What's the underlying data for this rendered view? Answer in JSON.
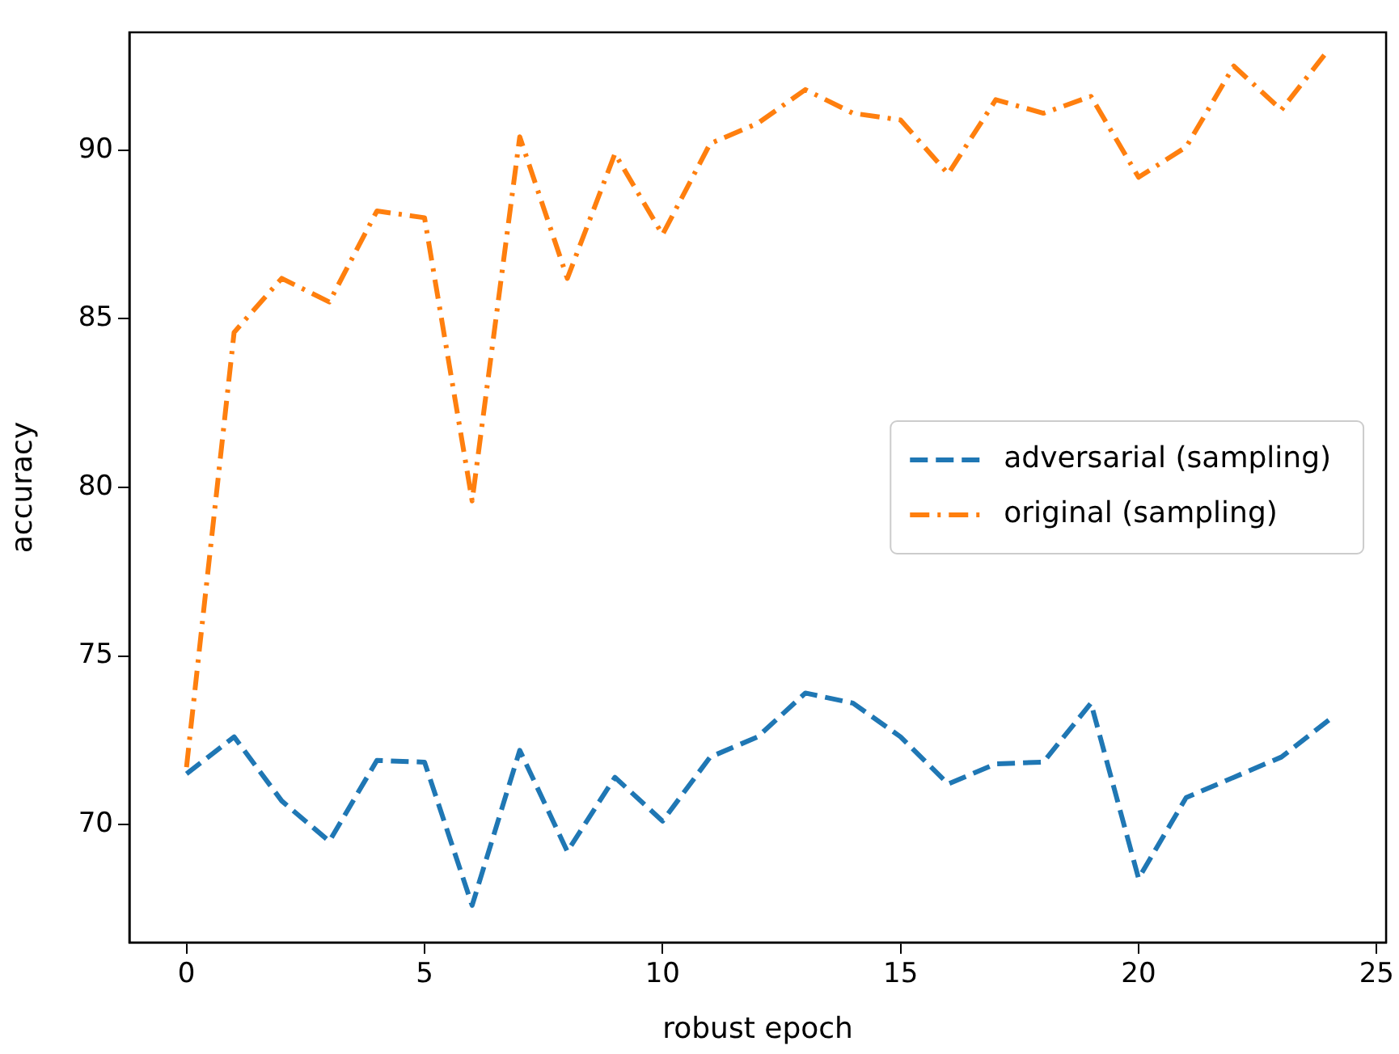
{
  "chart_data": {
    "type": "line",
    "xlabel": "robust epoch",
    "ylabel": "accuracy",
    "x": [
      0,
      1,
      2,
      3,
      4,
      5,
      6,
      7,
      8,
      9,
      10,
      11,
      12,
      13,
      14,
      15,
      16,
      17,
      18,
      19,
      20,
      21,
      22,
      23,
      24
    ],
    "series": [
      {
        "name": "adversarial (sampling)",
        "color": "#1f77b4",
        "line_style": "dashed",
        "values": [
          71.5,
          72.6,
          70.7,
          69.5,
          71.9,
          71.85,
          67.6,
          72.2,
          69.2,
          71.4,
          70.1,
          72.0,
          72.6,
          73.9,
          73.6,
          72.6,
          71.2,
          71.8,
          71.85,
          73.6,
          68.4,
          70.8,
          71.4,
          72.0,
          73.1
        ]
      },
      {
        "name": "original (sampling)",
        "color": "#ff7f0e",
        "line_style": "dashdot",
        "values": [
          71.7,
          84.6,
          86.2,
          85.5,
          88.2,
          88.0,
          79.6,
          90.4,
          86.2,
          89.9,
          87.5,
          90.2,
          90.8,
          91.8,
          91.1,
          90.9,
          89.3,
          91.5,
          91.1,
          91.6,
          89.2,
          90.1,
          92.5,
          91.2,
          93.0
        ]
      }
    ],
    "xlim": [
      -1.2,
      25.2
    ],
    "xticks": [
      0,
      5,
      10,
      15,
      20,
      25
    ],
    "ylim": [
      66.5,
      93.5
    ],
    "yticks": [
      70,
      75,
      80,
      85,
      90
    ],
    "grid": false,
    "legend": "right",
    "marker": "none"
  }
}
